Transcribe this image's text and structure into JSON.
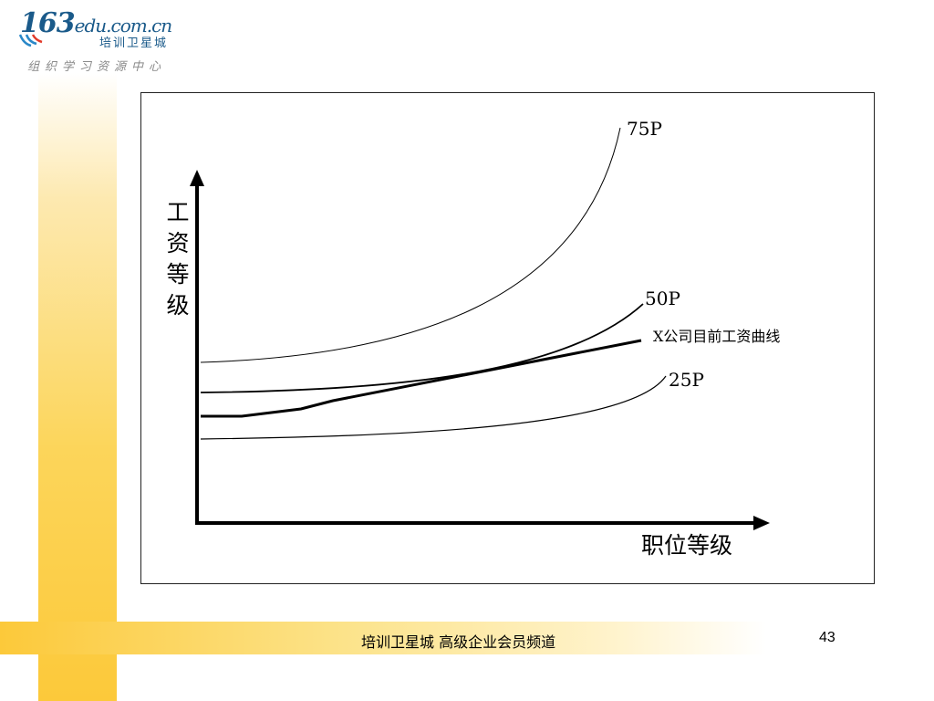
{
  "logo": {
    "digits": "163",
    "domain": "edu.com.cn",
    "subtitle": "培训卫星城",
    "tagline": "组织学习资源中心"
  },
  "diagram": {
    "y_axis_label": "工资等级",
    "x_axis_label": "职位等级",
    "curves": [
      {
        "label": "75P"
      },
      {
        "label": "50P"
      },
      {
        "label": "X公司目前工资曲线"
      },
      {
        "label": "25P"
      }
    ]
  },
  "footer": {
    "text": "培训卫星城  高级企业会员频道",
    "page": "43"
  }
}
